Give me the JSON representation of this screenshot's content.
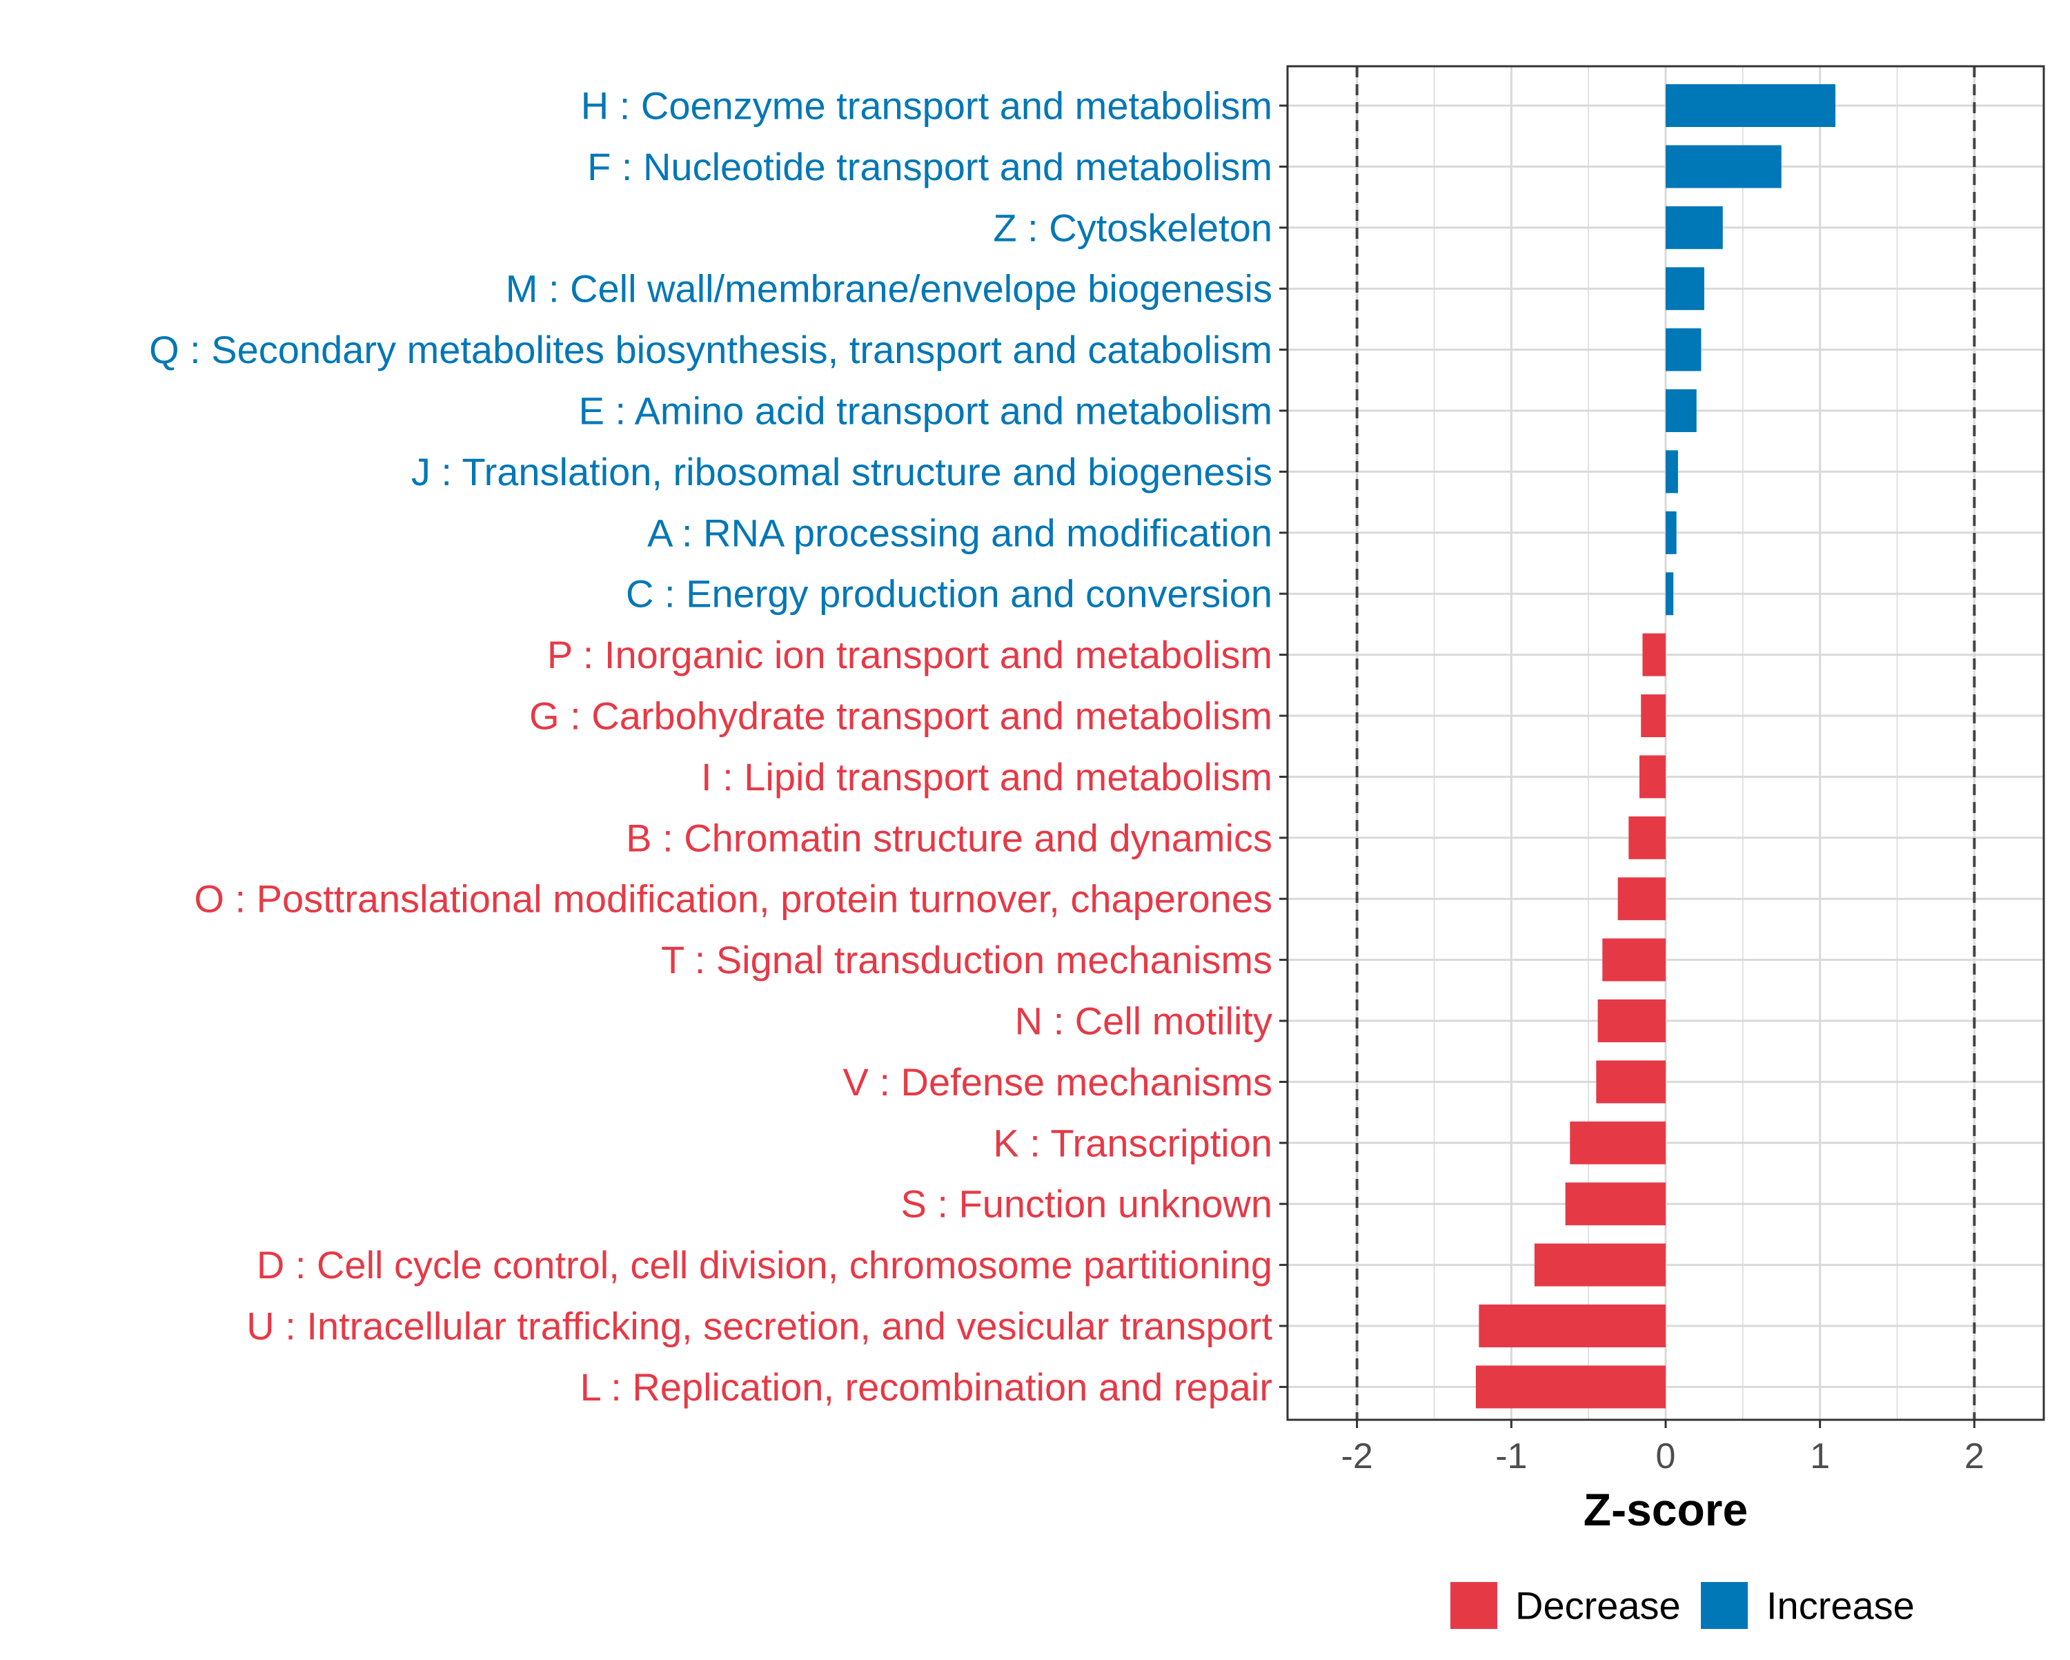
{
  "chart_data": {
    "type": "bar",
    "orientation": "horizontal",
    "xlabel": "Z-score",
    "ylabel": "",
    "xlim": [
      -2.45,
      2.45
    ],
    "xticks": [
      -2,
      -1,
      0,
      1,
      2
    ],
    "xtick_labels": [
      "-2",
      "-1",
      "0",
      "1",
      "2"
    ],
    "reference_lines": [
      -2,
      2
    ],
    "grid": true,
    "legend_position": "bottom",
    "legend": [
      {
        "name": "Decrease",
        "color": "#E63946"
      },
      {
        "name": "Increase",
        "color": "#0077B6"
      }
    ],
    "categories": [
      "H : Coenzyme transport and metabolism",
      "F : Nucleotide transport and metabolism",
      "Z : Cytoskeleton",
      "M : Cell wall/membrane/envelope biogenesis",
      "Q : Secondary metabolites biosynthesis, transport and catabolism",
      "E : Amino acid transport and metabolism",
      "J : Translation, ribosomal structure and biogenesis",
      "A : RNA processing and modification",
      "C : Energy production and conversion",
      "P : Inorganic ion transport and metabolism",
      "G : Carbohydrate transport and metabolism",
      "I : Lipid transport and metabolism",
      "B : Chromatin structure and dynamics",
      "O : Posttranslational modification, protein turnover, chaperones",
      "T : Signal transduction mechanisms",
      "N : Cell motility",
      "V : Defense mechanisms",
      "K : Transcription",
      "S : Function unknown",
      "D : Cell cycle control, cell division, chromosome partitioning",
      "U : Intracellular trafficking, secretion, and vesicular transport",
      "L : Replication, recombination and repair"
    ],
    "values": [
      1.1,
      0.75,
      0.37,
      0.25,
      0.23,
      0.2,
      0.08,
      0.07,
      0.05,
      -0.15,
      -0.16,
      -0.17,
      -0.24,
      -0.31,
      -0.41,
      -0.44,
      -0.45,
      -0.62,
      -0.65,
      -0.85,
      -1.21,
      -1.23
    ],
    "groups": [
      "Increase",
      "Increase",
      "Increase",
      "Increase",
      "Increase",
      "Increase",
      "Increase",
      "Increase",
      "Increase",
      "Decrease",
      "Decrease",
      "Decrease",
      "Decrease",
      "Decrease",
      "Decrease",
      "Decrease",
      "Decrease",
      "Decrease",
      "Decrease",
      "Decrease",
      "Decrease",
      "Decrease"
    ],
    "colors": {
      "Increase": "#0077B6",
      "Decrease": "#E63946",
      "grid": "#D9D9D9",
      "axis": "#333333",
      "tick_text": "#4D4D4D",
      "ref_line": "#444444"
    }
  }
}
